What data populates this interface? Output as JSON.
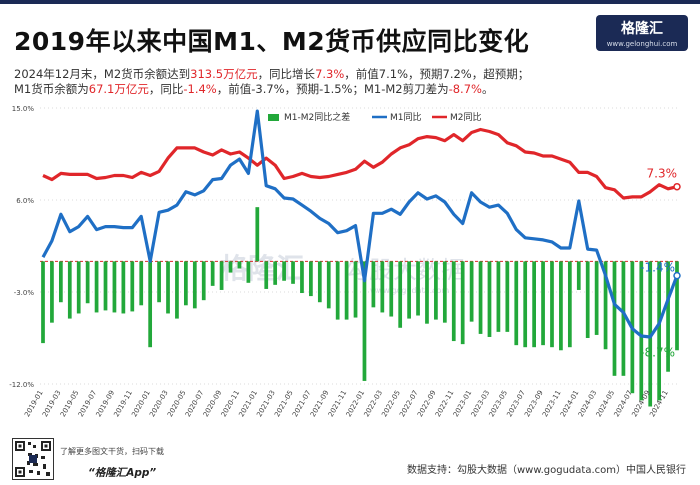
{
  "header": {
    "title": "2019年以来中国M1、M2货币供应同比变化",
    "logo_text": "格隆汇",
    "logo_url": "www.gelonghui.com"
  },
  "subtitle": {
    "l1_a": "2024年12月末，M2货币余额达到",
    "l1_b": "313.5万亿元",
    "l1_c": "，同比增长",
    "l1_d": "7.3%",
    "l1_e": "，前值7.1%，预期7.2%，超预期；",
    "l2_a": "M1货币余额为",
    "l2_b": "67.1万亿元",
    "l2_c": "，同比",
    "l2_d": "-1.4%",
    "l2_e": "，前值-3.7%，预期-1.5%；M1-M2剪刀差为",
    "l2_f": "-8.7%",
    "l2_g": "。"
  },
  "footer": {
    "note_1": "了解更多图文干货，扫码下载",
    "app_name": "“格隆汇App”",
    "source": "数据支持：勾股大数据（www.gogudata.com）中国人民银行"
  },
  "watermark": {
    "text_1": "格隆汇",
    "text_2": "勾股大数据",
    "url": "www.gogudata.com"
  },
  "chart_data": {
    "type": "line",
    "title": "2019年以来中国M1、M2货币供应同比变化",
    "ylim": [
      -12,
      15
    ],
    "y_ticks": [
      "15.0%",
      "6.0%",
      "-3.0%",
      "-12.0%"
    ],
    "y_tick_values": [
      15,
      6,
      -3,
      -12
    ],
    "x_tick_labels": [
      "2019-01",
      "2019-03",
      "2019-05",
      "2019-07",
      "2019-09",
      "2019-11",
      "2020-01",
      "2020-03",
      "2020-05",
      "2020-07",
      "2020-09",
      "2020-11",
      "2021-01",
      "2021-03",
      "2021-05",
      "2021-07",
      "2021-09",
      "2021-11",
      "2022-01",
      "2022-03",
      "2022-05",
      "2022-07",
      "2022-09",
      "2022-11",
      "2023-01",
      "2023-03",
      "2023-05",
      "2023-07",
      "2023-09",
      "2023-11",
      "2024-01",
      "2024-03",
      "2024-05",
      "2024-07",
      "2024-09",
      "2024-11"
    ],
    "legend": {
      "gap": "M1-M2同比之差",
      "m1": "M1同比",
      "m2": "M2同比",
      "position": "top"
    },
    "end_labels": {
      "m2": "7.3%",
      "m1": "-1.4%",
      "gap": "-8.7%"
    },
    "colors": {
      "m1": "#1f6fc5",
      "m2": "#e0262a",
      "gap": "#22a83a",
      "zero_line": "#e0262a"
    },
    "series": [
      {
        "name": "M2同比",
        "values": [
          8.4,
          8.0,
          8.6,
          8.5,
          8.5,
          8.5,
          8.1,
          8.2,
          8.4,
          8.4,
          8.2,
          8.7,
          8.4,
          8.8,
          10.1,
          11.1,
          11.1,
          11.1,
          10.7,
          10.4,
          10.9,
          10.5,
          10.7,
          10.1,
          9.4,
          10.1,
          9.4,
          8.1,
          8.3,
          8.6,
          8.3,
          8.2,
          8.3,
          8.5,
          8.7,
          9.0,
          9.8,
          9.2,
          9.7,
          10.5,
          11.1,
          11.4,
          12.0,
          12.2,
          12.1,
          11.8,
          12.4,
          11.8,
          12.6,
          12.9,
          12.7,
          12.4,
          11.6,
          11.3,
          10.7,
          10.6,
          10.3,
          10.3,
          10.0,
          9.7,
          8.7,
          8.7,
          8.3,
          7.2,
          7.0,
          6.2,
          6.3,
          6.3,
          6.8,
          7.5,
          7.1,
          7.3
        ]
      },
      {
        "name": "M1同比",
        "values": [
          0.4,
          2.0,
          4.6,
          2.9,
          3.4,
          4.4,
          3.1,
          3.4,
          3.4,
          3.3,
          3.3,
          4.4,
          0.0,
          4.8,
          5.0,
          5.5,
          6.8,
          6.5,
          6.9,
          8.0,
          8.1,
          9.4,
          10.0,
          8.6,
          14.7,
          7.4,
          7.1,
          6.2,
          6.1,
          5.5,
          4.9,
          4.2,
          3.7,
          2.8,
          3.0,
          3.5,
          -1.9,
          4.7,
          4.7,
          5.1,
          4.6,
          5.8,
          6.7,
          6.1,
          6.4,
          5.8,
          4.6,
          3.7,
          6.7,
          5.8,
          5.3,
          5.5,
          4.7,
          3.1,
          2.3,
          2.2,
          2.1,
          1.9,
          1.3,
          1.3,
          5.9,
          1.2,
          1.1,
          -1.4,
          -4.2,
          -5.0,
          -6.6,
          -7.3,
          -7.4,
          -6.1,
          -3.7,
          -1.4
        ]
      },
      {
        "name": "M1-M2同比之差",
        "values": [
          -8.0,
          -6.0,
          -4.0,
          -5.6,
          -5.1,
          -4.1,
          -5.0,
          -4.8,
          -5.0,
          -5.1,
          -4.9,
          -4.3,
          -8.4,
          -4.0,
          -5.1,
          -5.6,
          -4.3,
          -4.6,
          -3.8,
          -2.4,
          -2.8,
          -1.1,
          -0.7,
          -2.1,
          5.3,
          -2.7,
          -2.3,
          -1.9,
          -2.2,
          -3.1,
          -3.4,
          -4.0,
          -4.6,
          -5.7,
          -5.7,
          -5.5,
          -11.7,
          -4.5,
          -5.0,
          -5.4,
          -6.5,
          -5.6,
          -5.3,
          -6.1,
          -5.7,
          -6.0,
          -7.8,
          -8.1,
          -5.9,
          -7.1,
          -7.4,
          -6.9,
          -6.9,
          -8.2,
          -8.4,
          -8.4,
          -8.2,
          -8.4,
          -8.7,
          -8.4,
          -2.8,
          -7.5,
          -7.2,
          -8.6,
          -11.2,
          -11.2,
          -12.9,
          -13.6,
          -14.2,
          -13.6,
          -10.8,
          -8.7
        ]
      }
    ]
  }
}
